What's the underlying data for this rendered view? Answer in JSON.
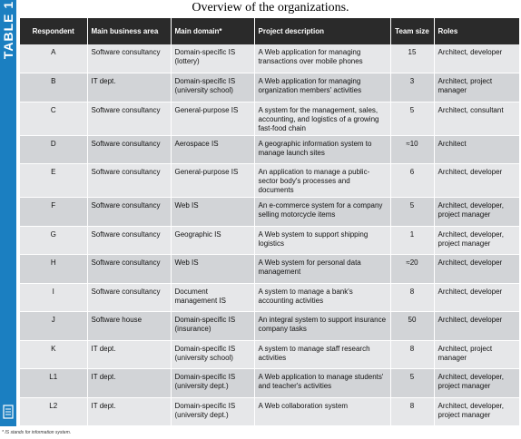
{
  "side_label": "TABLE 1",
  "title": "Overview of the organizations.",
  "headers": {
    "respondent": "Respondent",
    "business_area": "Main business area",
    "domain": "Main domain*",
    "description": "Project description",
    "team_size": "Team size",
    "roles": "Roles"
  },
  "rows": [
    {
      "respondent": "A",
      "area": "Software consultancy",
      "domain": "Domain-specific IS (lottery)",
      "description": "A Web application for managing transactions over mobile phones",
      "size": "15",
      "roles": "Architect, developer"
    },
    {
      "respondent": "B",
      "area": "IT dept.",
      "domain": "Domain-specific IS (university school)",
      "description": "A Web application for managing organization members' activities",
      "size": "3",
      "roles": "Architect, project manager"
    },
    {
      "respondent": "C",
      "area": "Software consultancy",
      "domain": "General-purpose IS",
      "description": "A system for the management, sales, accounting, and logistics of a growing fast-food chain",
      "size": "5",
      "roles": "Architect, consultant"
    },
    {
      "respondent": "D",
      "area": "Software consultancy",
      "domain": "Aerospace IS",
      "description": "A geographic information system to manage launch sites",
      "size": "≈10",
      "roles": "Architect"
    },
    {
      "respondent": "E",
      "area": "Software consultancy",
      "domain": "General-purpose IS",
      "description": "An application to manage a public-sector body's processes and documents",
      "size": "6",
      "roles": "Architect, developer"
    },
    {
      "respondent": "F",
      "area": "Software consultancy",
      "domain": "Web IS",
      "description": "An e-commerce system for a company selling motorcycle items",
      "size": "5",
      "roles": "Architect, developer, project manager"
    },
    {
      "respondent": "G",
      "area": "Software consultancy",
      "domain": "Geographic IS",
      "description": "A Web system to support shipping logistics",
      "size": "1",
      "roles": "Architect, developer, project manager"
    },
    {
      "respondent": "H",
      "area": "Software consultancy",
      "domain": "Web IS",
      "description": "A Web system for personal data management",
      "size": "≈20",
      "roles": "Architect, developer"
    },
    {
      "respondent": "I",
      "area": "Software consultancy",
      "domain": "Document management IS",
      "description": "A system to manage a bank's accounting activities",
      "size": "8",
      "roles": "Architect, developer"
    },
    {
      "respondent": "J",
      "area": "Software house",
      "domain": "Domain-specific IS (insurance)",
      "description": "An integral system to support insurance company tasks",
      "size": "50",
      "roles": "Architect, developer"
    },
    {
      "respondent": "K",
      "area": "IT dept.",
      "domain": "Domain-specific IS (university school)",
      "description": "A system to manage staff research activities",
      "size": "8",
      "roles": "Architect, project manager"
    },
    {
      "respondent": "L1",
      "area": "IT dept.",
      "domain": "Domain-specific IS (university dept.)",
      "description": "A Web application to manage students' and teacher's activities",
      "size": "5",
      "roles": "Architect, developer, project manager"
    },
    {
      "respondent": "L2",
      "area": "IT dept.",
      "domain": "Domain-specific IS (university dept.)",
      "description": "A Web collaboration system",
      "size": "8",
      "roles": "Architect, developer, project manager"
    }
  ],
  "footnote": "* IS stands for information system.",
  "colors": {
    "side_tab": "#1b7fc1",
    "header_bg": "#2a2a2a",
    "row_light": "#e6e7e9",
    "row_dark": "#d2d4d7"
  },
  "icons": {
    "side_icon": "document-icon"
  }
}
